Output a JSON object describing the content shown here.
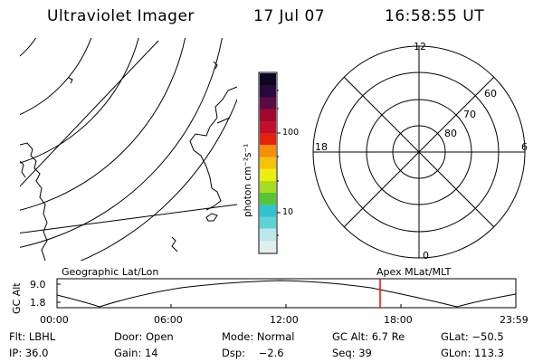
{
  "header": {
    "title": "Ultraviolet Imager",
    "date": "17 Jul 07",
    "time": "16:58:55 UT"
  },
  "map_panel": {
    "label": "Geographic Lat/Lon"
  },
  "polar_panel": {
    "label": "Apex MLat/MLT",
    "mlt_labels": {
      "top": "12",
      "left": "18",
      "right": "6",
      "bottom": "0"
    },
    "lat_labels": [
      "60",
      "70",
      "80"
    ]
  },
  "colorbar": {
    "unit_label": "photon cm⁻²s⁻¹",
    "ticks": [
      "100",
      "10"
    ],
    "colors": [
      "#dfeeee",
      "#c0e7e7",
      "#5fd2d6",
      "#31c4d0",
      "#56c53a",
      "#a6dd22",
      "#ecee12",
      "#f5c20a",
      "#f58f08",
      "#e2220c",
      "#c2102a",
      "#a0082e",
      "#5d0a44",
      "#26083c",
      "#0a0620"
    ]
  },
  "altitude_plot": {
    "axis_label": "GC Alt",
    "y_ticks": [
      "9.0",
      "1.8"
    ],
    "x_ticks": [
      "00:00",
      "06:00",
      "12:00",
      "18:00",
      "23:59"
    ],
    "marker_color": "#ff0000"
  },
  "info": {
    "filter": "Flt: LBHL",
    "door": "Door: Open",
    "mode": "Mode: Normal",
    "gc_alt": "GC Alt: 6.7 Re",
    "glat": "GLat: −50.5",
    "ip": "IP: 36.0",
    "gain": "Gain: 14",
    "dsp": "Dsp:    −2.6",
    "seq": "Seq: 39",
    "glon": "GLon: 113.3"
  }
}
